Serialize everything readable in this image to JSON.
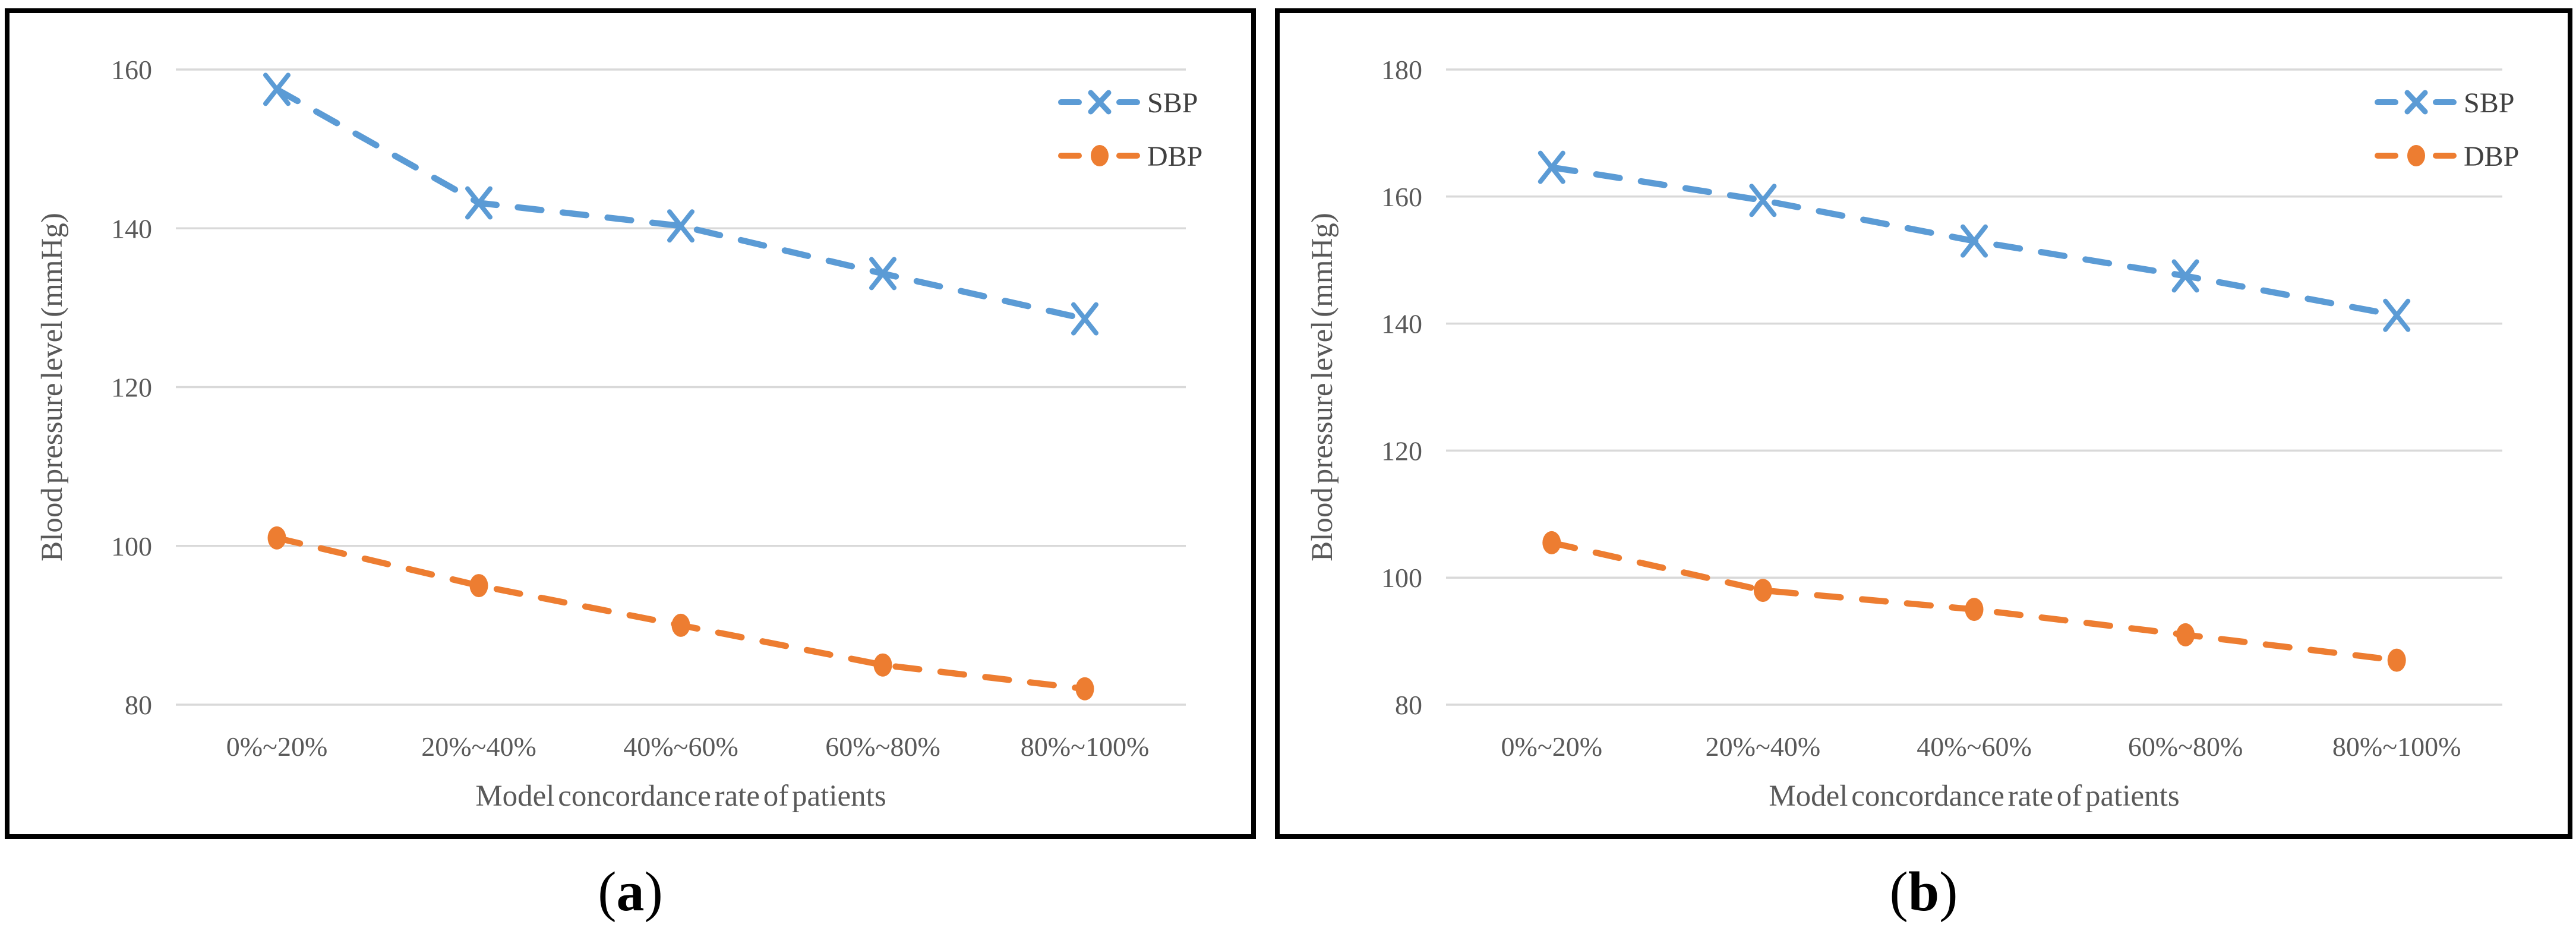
{
  "figure": {
    "background": "#ffffff",
    "colors": {
      "sbp": "#5B9BD5",
      "dbp": "#ED7D31",
      "grid": "#D9D9D9",
      "tick_text": "#595959",
      "axis_text": "#595959",
      "legend_text": "#404040",
      "border": "#000000"
    }
  },
  "chart_data": [
    {
      "type": "line",
      "caption": {
        "open": "(",
        "letter": "a",
        "close": ")"
      },
      "xlabel": "Model concordance rate of patients",
      "ylabel": "Blood pressure level (mmHg)",
      "categories": [
        "0%~20%",
        "20%~40%",
        "40%~60%",
        "60%~80%",
        "80%~100%"
      ],
      "series": [
        {
          "name": "SBP",
          "color_key": "sbp",
          "marker": "x",
          "dashed": true,
          "values": [
            157.5,
            143.2,
            140.3,
            134.3,
            128.6
          ]
        },
        {
          "name": "DBP",
          "color_key": "dbp",
          "marker": "circle",
          "dashed": true,
          "values": [
            101,
            95,
            90,
            85,
            82
          ]
        }
      ],
      "ylim": [
        80,
        160
      ],
      "yticks": [
        80,
        100,
        120,
        140,
        160
      ],
      "grid": true,
      "legend_position": "top-right"
    },
    {
      "type": "line",
      "caption": {
        "open": "(",
        "letter": "b",
        "close": ")"
      },
      "xlabel": "Model concordance rate of patients",
      "ylabel": "Blood pressure level (mmHg)",
      "categories": [
        "0%~20%",
        "20%~40%",
        "40%~60%",
        "60%~80%",
        "80%~100%"
      ],
      "series": [
        {
          "name": "SBP",
          "color_key": "sbp",
          "marker": "x",
          "dashed": true,
          "values": [
            164.6,
            159.4,
            153,
            147.5,
            141.3
          ]
        },
        {
          "name": "DBP",
          "color_key": "dbp",
          "marker": "circle",
          "dashed": true,
          "values": [
            105.5,
            98,
            95,
            91,
            87
          ]
        }
      ],
      "ylim": [
        80,
        180
      ],
      "yticks": [
        80,
        100,
        120,
        140,
        160,
        180
      ],
      "grid": true,
      "legend_position": "top-right"
    }
  ]
}
